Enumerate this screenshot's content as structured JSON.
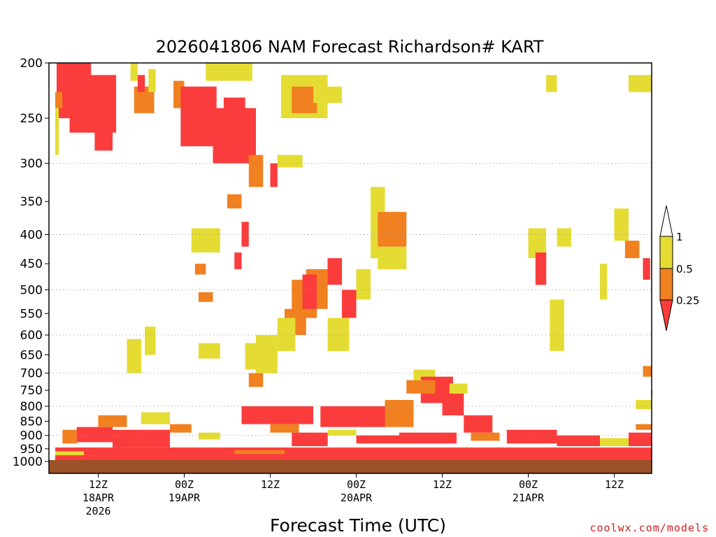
{
  "chart_data": {
    "type": "heatmap",
    "title": "2026041806 NAM Forecast Richardson# KART",
    "xlabel": "Forecast Time (UTC)",
    "ylabel": "",
    "credit": "coolwx.com/models",
    "x_unit": "forecast hour from 2026041806",
    "xlim": [
      0,
      84
    ],
    "y_unit": "pressure (hPa)",
    "ylim": [
      1000,
      200
    ],
    "y_ticks": [
      {
        "value": 200,
        "label": "200"
      },
      {
        "value": 250,
        "label": "250"
      },
      {
        "value": 300,
        "label": "300"
      },
      {
        "value": 350,
        "label": "350"
      },
      {
        "value": 400,
        "label": "400"
      },
      {
        "value": 450,
        "label": "450"
      },
      {
        "value": 500,
        "label": "500"
      },
      {
        "value": 550,
        "label": "550"
      },
      {
        "value": 600,
        "label": "600"
      },
      {
        "value": 650,
        "label": "650"
      },
      {
        "value": 700,
        "label": "700"
      },
      {
        "value": 750,
        "label": "750"
      },
      {
        "value": 800,
        "label": "800"
      },
      {
        "value": 850,
        "label": "850"
      },
      {
        "value": 900,
        "label": "900"
      },
      {
        "value": 950,
        "label": "950"
      },
      {
        "value": 1000,
        "label": "1000"
      }
    ],
    "grid_pressures": [
      300,
      400,
      500,
      600,
      700,
      800,
      900
    ],
    "x_ticks": [
      {
        "hour": 6,
        "lines": [
          "12Z",
          "18APR",
          "2026"
        ]
      },
      {
        "hour": 18,
        "lines": [
          "00Z",
          "19APR"
        ]
      },
      {
        "hour": 30,
        "lines": [
          "12Z"
        ]
      },
      {
        "hour": 42,
        "lines": [
          "00Z",
          "20APR"
        ]
      },
      {
        "hour": 54,
        "lines": [
          "12Z"
        ]
      },
      {
        "hour": 66,
        "lines": [
          "00Z",
          "21APR"
        ]
      },
      {
        "hour": 78,
        "lines": [
          "12Z"
        ]
      }
    ],
    "legend": {
      "categories": [
        {
          "label": "1",
          "range": "> 1",
          "color": "#ffffff"
        },
        {
          "label": "0.5",
          "range": "0.5 - 1",
          "color": "#e5dc33"
        },
        {
          "label": "0.25",
          "range": "0.25 - 0.5",
          "color": "#f08020"
        },
        {
          "label": "",
          "range": "< 0.25",
          "color": "#fa3c3c"
        }
      ]
    },
    "ground": {
      "pressure_top": 1000,
      "color": "#9b5228"
    },
    "colors": {
      "yellow": "#e5dc33",
      "orange": "#f08020",
      "red": "#fa3c3c"
    },
    "regions": [
      {
        "c": "red",
        "h": [
          0.2,
          5.0
        ],
        "p": [
          200,
          250
        ]
      },
      {
        "c": "red",
        "h": [
          2.0,
          8.5
        ],
        "p": [
          210,
          265
        ]
      },
      {
        "c": "red",
        "h": [
          5.5,
          8.0
        ],
        "p": [
          255,
          285
        ]
      },
      {
        "c": "orange",
        "h": [
          0.0,
          1.0
        ],
        "p": [
          225,
          240
        ]
      },
      {
        "c": "yellow",
        "h": [
          0.0,
          0.5
        ],
        "p": [
          240,
          290
        ]
      },
      {
        "c": "yellow",
        "h": [
          10.5,
          11.5
        ],
        "p": [
          200,
          215
        ]
      },
      {
        "c": "orange",
        "h": [
          11.0,
          13.8
        ],
        "p": [
          220,
          245
        ]
      },
      {
        "c": "red",
        "h": [
          11.5,
          12.5
        ],
        "p": [
          210,
          225
        ]
      },
      {
        "c": "yellow",
        "h": [
          13.0,
          14.0
        ],
        "p": [
          205,
          225
        ]
      },
      {
        "c": "orange",
        "h": [
          16.5,
          18.0
        ],
        "p": [
          215,
          240
        ]
      },
      {
        "c": "red",
        "h": [
          17.5,
          22.5
        ],
        "p": [
          220,
          280
        ]
      },
      {
        "c": "red",
        "h": [
          22.0,
          28.0
        ],
        "p": [
          240,
          300
        ]
      },
      {
        "c": "red",
        "h": [
          23.5,
          26.5
        ],
        "p": [
          230,
          260
        ]
      },
      {
        "c": "yellow",
        "h": [
          21.0,
          27.5
        ],
        "p": [
          200,
          215
        ]
      },
      {
        "c": "yellow",
        "h": [
          31.0,
          34.5
        ],
        "p": [
          290,
          305
        ]
      },
      {
        "c": "yellow",
        "h": [
          31.5,
          38.0
        ],
        "p": [
          210,
          250
        ]
      },
      {
        "c": "orange",
        "h": [
          33.0,
          36.5
        ],
        "p": [
          220,
          245
        ]
      },
      {
        "c": "yellow",
        "h": [
          36.0,
          40.0
        ],
        "p": [
          220,
          235
        ]
      },
      {
        "c": "yellow",
        "h": [
          44.0,
          46.0
        ],
        "p": [
          330,
          440
        ]
      },
      {
        "c": "orange",
        "h": [
          45.0,
          49.0
        ],
        "p": [
          365,
          420
        ]
      },
      {
        "c": "yellow",
        "h": [
          45.0,
          49.0
        ],
        "p": [
          420,
          460
        ]
      },
      {
        "c": "red",
        "h": [
          38.0,
          40.0
        ],
        "p": [
          440,
          490
        ]
      },
      {
        "c": "orange",
        "h": [
          35.0,
          38.0
        ],
        "p": [
          460,
          540
        ]
      },
      {
        "c": "orange",
        "h": [
          33.0,
          36.5
        ],
        "p": [
          480,
          560
        ]
      },
      {
        "c": "red",
        "h": [
          34.5,
          36.5
        ],
        "p": [
          470,
          540
        ]
      },
      {
        "c": "orange",
        "h": [
          32.0,
          35.0
        ],
        "p": [
          540,
          600
        ]
      },
      {
        "c": "yellow",
        "h": [
          31.0,
          33.5
        ],
        "p": [
          560,
          640
        ]
      },
      {
        "c": "red",
        "h": [
          40.0,
          42.0
        ],
        "p": [
          500,
          560
        ]
      },
      {
        "c": "yellow",
        "h": [
          42.0,
          44.0
        ],
        "p": [
          460,
          520
        ]
      },
      {
        "c": "yellow",
        "h": [
          28.0,
          31.0
        ],
        "p": [
          600,
          700
        ]
      },
      {
        "c": "yellow",
        "h": [
          38.0,
          41.0
        ],
        "p": [
          560,
          640
        ]
      },
      {
        "c": "yellow",
        "h": [
          19.0,
          23.0
        ],
        "p": [
          390,
          430
        ]
      },
      {
        "c": "orange",
        "h": [
          19.5,
          21.0
        ],
        "p": [
          450,
          470
        ]
      },
      {
        "c": "orange",
        "h": [
          20.0,
          22.0
        ],
        "p": [
          505,
          525
        ]
      },
      {
        "c": "yellow",
        "h": [
          20.0,
          23.0
        ],
        "p": [
          620,
          660
        ]
      },
      {
        "c": "yellow",
        "h": [
          10.0,
          12.0
        ],
        "p": [
          610,
          700
        ]
      },
      {
        "c": "yellow",
        "h": [
          12.5,
          14.0
        ],
        "p": [
          580,
          650
        ]
      },
      {
        "c": "orange",
        "h": [
          24.0,
          26.0
        ],
        "p": [
          340,
          360
        ]
      },
      {
        "c": "red",
        "h": [
          26.0,
          27.0
        ],
        "p": [
          380,
          420
        ]
      },
      {
        "c": "orange",
        "h": [
          27.0,
          29.0
        ],
        "p": [
          290,
          330
        ]
      },
      {
        "c": "red",
        "h": [
          30.0,
          31.0
        ],
        "p": [
          300,
          330
        ]
      },
      {
        "c": "red",
        "h": [
          25.0,
          26.0
        ],
        "p": [
          430,
          460
        ]
      },
      {
        "c": "yellow",
        "h": [
          26.5,
          28.5
        ],
        "p": [
          620,
          690
        ]
      },
      {
        "c": "orange",
        "h": [
          27.0,
          29.0
        ],
        "p": [
          700,
          740
        ]
      },
      {
        "c": "yellow",
        "h": [
          50.0,
          53.0
        ],
        "p": [
          690,
          720
        ]
      },
      {
        "c": "red",
        "h": [
          51.0,
          55.5
        ],
        "p": [
          710,
          790
        ]
      },
      {
        "c": "orange",
        "h": [
          49.0,
          53.0
        ],
        "p": [
          720,
          760
        ]
      },
      {
        "c": "red",
        "h": [
          54.0,
          57.0
        ],
        "p": [
          760,
          830
        ]
      },
      {
        "c": "yellow",
        "h": [
          55.0,
          57.5
        ],
        "p": [
          730,
          760
        ]
      },
      {
        "c": "orange",
        "h": [
          46.0,
          50.0
        ],
        "p": [
          780,
          870
        ]
      },
      {
        "c": "red",
        "h": [
          37.0,
          46.0
        ],
        "p": [
          800,
          870
        ]
      },
      {
        "c": "red",
        "h": [
          57.0,
          61.0
        ],
        "p": [
          830,
          890
        ]
      },
      {
        "c": "yellow",
        "h": [
          66.0,
          68.5
        ],
        "p": [
          390,
          440
        ]
      },
      {
        "c": "red",
        "h": [
          67.0,
          68.5
        ],
        "p": [
          430,
          490
        ]
      },
      {
        "c": "yellow",
        "h": [
          70.0,
          72.0
        ],
        "p": [
          390,
          420
        ]
      },
      {
        "c": "yellow",
        "h": [
          69.0,
          71.0
        ],
        "p": [
          520,
          640
        ]
      },
      {
        "c": "yellow",
        "h": [
          80.0,
          84.0
        ],
        "p": [
          210,
          225
        ]
      },
      {
        "c": "yellow",
        "h": [
          68.5,
          70.0
        ],
        "p": [
          210,
          225
        ]
      },
      {
        "c": "yellow",
        "h": [
          78.0,
          80.0
        ],
        "p": [
          360,
          410
        ]
      },
      {
        "c": "orange",
        "h": [
          79.5,
          81.5
        ],
        "p": [
          410,
          440
        ]
      },
      {
        "c": "red",
        "h": [
          82.0,
          83.0
        ],
        "p": [
          440,
          480
        ]
      },
      {
        "c": "yellow",
        "h": [
          76.0,
          77.0
        ],
        "p": [
          450,
          520
        ]
      },
      {
        "c": "orange",
        "h": [
          82.0,
          84.0
        ],
        "p": [
          680,
          710
        ]
      },
      {
        "c": "yellow",
        "h": [
          81.0,
          84.0
        ],
        "p": [
          780,
          810
        ]
      },
      {
        "c": "red",
        "h": [
          83.5,
          84.0
        ],
        "p": [
          750,
          770
        ]
      },
      {
        "c": "orange",
        "h": [
          1.0,
          3.0
        ],
        "p": [
          880,
          930
        ]
      },
      {
        "c": "red",
        "h": [
          3.0,
          8.0
        ],
        "p": [
          870,
          925
        ]
      },
      {
        "c": "red",
        "h": [
          8.0,
          16.0
        ],
        "p": [
          880,
          945
        ]
      },
      {
        "c": "orange",
        "h": [
          6.0,
          10.0
        ],
        "p": [
          830,
          870
        ]
      },
      {
        "c": "yellow",
        "h": [
          12.0,
          16.0
        ],
        "p": [
          820,
          860
        ]
      },
      {
        "c": "orange",
        "h": [
          16.0,
          19.0
        ],
        "p": [
          860,
          890
        ]
      },
      {
        "c": "yellow",
        "h": [
          20.0,
          23.0
        ],
        "p": [
          890,
          915
        ]
      },
      {
        "c": "red",
        "h": [
          26.0,
          36.0
        ],
        "p": [
          800,
          860
        ]
      },
      {
        "c": "orange",
        "h": [
          30.0,
          34.0
        ],
        "p": [
          860,
          890
        ]
      },
      {
        "c": "red",
        "h": [
          33.0,
          38.0
        ],
        "p": [
          890,
          940
        ]
      },
      {
        "c": "yellow",
        "h": [
          38.0,
          42.0
        ],
        "p": [
          880,
          900
        ]
      },
      {
        "c": "red",
        "h": [
          42.0,
          48.0
        ],
        "p": [
          900,
          930
        ]
      },
      {
        "c": "red",
        "h": [
          48.0,
          56.0
        ],
        "p": [
          890,
          930
        ]
      },
      {
        "c": "orange",
        "h": [
          58.0,
          62.0
        ],
        "p": [
          890,
          920
        ]
      },
      {
        "c": "red",
        "h": [
          63.0,
          70.0
        ],
        "p": [
          880,
          930
        ]
      },
      {
        "c": "red",
        "h": [
          70.0,
          76.0
        ],
        "p": [
          900,
          940
        ]
      },
      {
        "c": "yellow",
        "h": [
          76.0,
          80.0
        ],
        "p": [
          910,
          940
        ]
      },
      {
        "c": "red",
        "h": [
          80.0,
          84.0
        ],
        "p": [
          890,
          940
        ]
      },
      {
        "c": "orange",
        "h": [
          81.0,
          84.0
        ],
        "p": [
          860,
          880
        ]
      },
      {
        "c": "red",
        "h": [
          0.0,
          84.0
        ],
        "p": [
          945,
          975
        ]
      },
      {
        "c": "red",
        "h": [
          0.0,
          84.0
        ],
        "p": [
          975,
          1000
        ]
      },
      {
        "c": "yellow",
        "h": [
          0.0,
          4.0
        ],
        "p": [
          960,
          975
        ]
      },
      {
        "c": "orange",
        "h": [
          25.0,
          32.0
        ],
        "p": [
          955,
          970
        ]
      }
    ]
  }
}
